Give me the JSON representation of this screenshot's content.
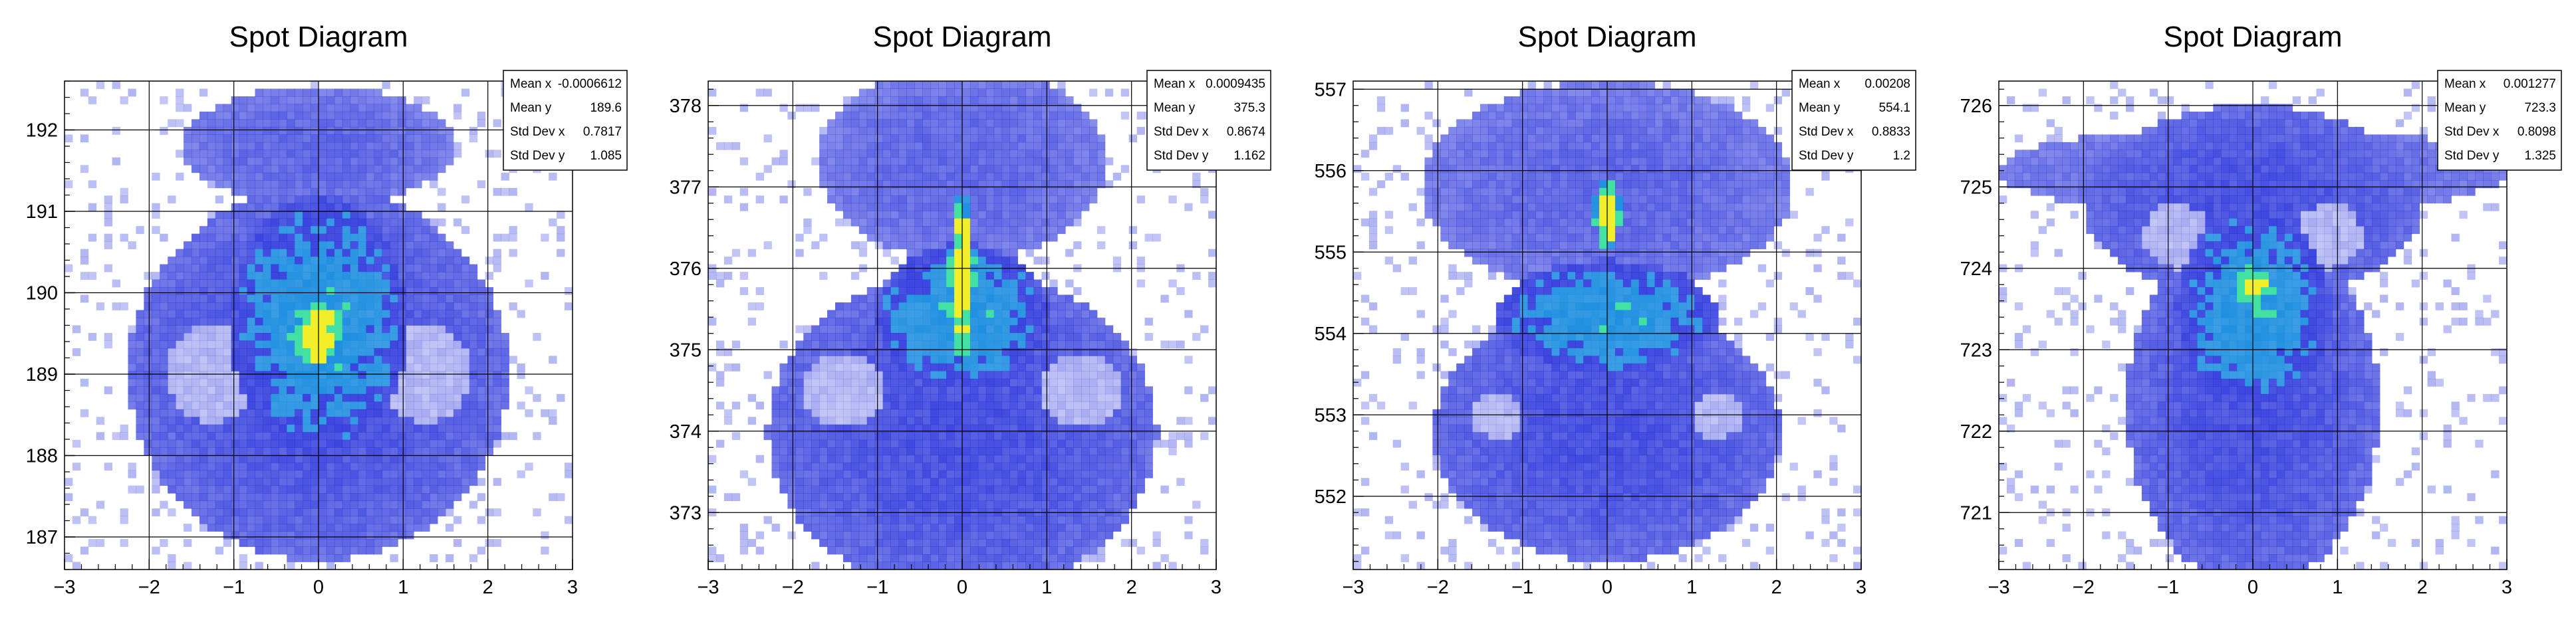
{
  "colors": {
    "background": "#ffffff",
    "frame": "#000000",
    "grid": "#000000",
    "stats_box_border": "#000000",
    "low": "#1f2ad9",
    "mid": "#1f8fe0",
    "high": "#43e0a3",
    "peak": "#f2ee2a"
  },
  "chart_data": [
    {
      "type": "heatmap",
      "title": "Spot Diagram",
      "xlim": [
        -3,
        3
      ],
      "ylim": [
        186.6,
        192.6
      ],
      "xticks": [
        -3,
        -2,
        -1,
        0,
        1,
        2,
        3
      ],
      "yticks": [
        187,
        188,
        189,
        190,
        191,
        192
      ],
      "grid": true,
      "stats_box": "top-right",
      "stats": [
        {
          "label": "Mean x",
          "value": "-0.0006612"
        },
        {
          "label": "Mean y",
          "value": "189.6"
        },
        {
          "label": "Std Dev x",
          "value": "0.7817"
        },
        {
          "label": "Std Dev y",
          "value": "1.085"
        }
      ],
      "features": [
        {
          "kind": "disk",
          "cx": 0,
          "cy": 189.0,
          "rx": 2.25,
          "ry": 2.3,
          "density": 0.55
        },
        {
          "kind": "disk",
          "cx": 0,
          "cy": 191.8,
          "rx": 1.6,
          "ry": 0.75,
          "density": 0.45
        },
        {
          "kind": "disk",
          "cx": -1.25,
          "cy": 189.0,
          "rx": 0.55,
          "ry": 0.6,
          "density": 0.08
        },
        {
          "kind": "disk",
          "cx": 1.25,
          "cy": 189.0,
          "rx": 0.55,
          "ry": 0.6,
          "density": 0.08
        },
        {
          "kind": "disk",
          "cx": 0,
          "cy": 189.6,
          "rx": 1.05,
          "ry": 1.6,
          "density": 0.72
        },
        {
          "kind": "disk",
          "cx": 0,
          "cy": 189.5,
          "rx": 0.3,
          "ry": 0.45,
          "density": 0.95
        }
      ]
    },
    {
      "type": "heatmap",
      "title": "Spot Diagram",
      "xlim": [
        -3,
        3
      ],
      "ylim": [
        372.3,
        378.3
      ],
      "xticks": [
        -3,
        -2,
        -1,
        0,
        1,
        2,
        3
      ],
      "yticks": [
        373,
        374,
        375,
        376,
        377,
        378
      ],
      "grid": true,
      "stats_box": "top-right",
      "stats": [
        {
          "label": "Mean x",
          "value": "0.0009435"
        },
        {
          "label": "Mean y",
          "value": "375.3"
        },
        {
          "label": "Std Dev x",
          "value": "0.8674"
        },
        {
          "label": "Std Dev y",
          "value": "1.162"
        }
      ],
      "features": [
        {
          "kind": "disk",
          "cx": 0,
          "cy": 374.0,
          "rx": 2.3,
          "ry": 2.0,
          "density": 0.55
        },
        {
          "kind": "disk",
          "cx": 0,
          "cy": 377.3,
          "rx": 1.7,
          "ry": 1.2,
          "density": 0.45
        },
        {
          "kind": "disk",
          "cx": -1.4,
          "cy": 374.5,
          "rx": 0.5,
          "ry": 0.45,
          "density": 0.08
        },
        {
          "kind": "disk",
          "cx": 1.4,
          "cy": 374.5,
          "rx": 0.5,
          "ry": 0.45,
          "density": 0.08
        },
        {
          "kind": "disk",
          "cx": 0,
          "cy": 375.4,
          "rx": 1.0,
          "ry": 0.9,
          "density": 0.72
        },
        {
          "kind": "disk",
          "cx": 0,
          "cy": 375.9,
          "rx": 0.15,
          "ry": 1.0,
          "density": 0.95
        }
      ]
    },
    {
      "type": "heatmap",
      "title": "Spot Diagram",
      "xlim": [
        -3,
        3
      ],
      "ylim": [
        551.1,
        557.1
      ],
      "xticks": [
        -3,
        -2,
        -1,
        0,
        1,
        2,
        3
      ],
      "yticks": [
        552,
        553,
        554,
        555,
        556,
        557
      ],
      "grid": true,
      "stats_box": "top-right",
      "stats": [
        {
          "label": "Mean x",
          "value": "0.00208"
        },
        {
          "label": "Mean y",
          "value": "554.1"
        },
        {
          "label": "Std Dev x",
          "value": "0.8833"
        },
        {
          "label": "Std Dev y",
          "value": "1.2"
        }
      ],
      "features": [
        {
          "kind": "disk",
          "cx": 0,
          "cy": 552.8,
          "rx": 2.05,
          "ry": 1.6,
          "density": 0.55
        },
        {
          "kind": "disk",
          "cx": 0,
          "cy": 555.8,
          "rx": 2.2,
          "ry": 1.3,
          "density": 0.45
        },
        {
          "kind": "disk",
          "cx": -1.3,
          "cy": 553.0,
          "rx": 0.3,
          "ry": 0.3,
          "density": 0.08
        },
        {
          "kind": "disk",
          "cx": 1.3,
          "cy": 553.0,
          "rx": 0.3,
          "ry": 0.3,
          "density": 0.08
        },
        {
          "kind": "disk",
          "cx": 0,
          "cy": 554.2,
          "rx": 1.3,
          "ry": 0.7,
          "density": 0.72
        },
        {
          "kind": "disk",
          "cx": 0,
          "cy": 555.5,
          "rx": 0.15,
          "ry": 0.45,
          "density": 0.95
        }
      ]
    },
    {
      "type": "heatmap",
      "title": "Spot Diagram",
      "xlim": [
        -3,
        3
      ],
      "ylim": [
        720.3,
        726.3
      ],
      "xticks": [
        -3,
        -2,
        -1,
        0,
        1,
        2,
        3
      ],
      "yticks": [
        721,
        722,
        723,
        724,
        725,
        726
      ],
      "grid": true,
      "stats_box": "top-right",
      "stats": [
        {
          "label": "Mean x",
          "value": "0.001277"
        },
        {
          "label": "Mean y",
          "value": "723.3"
        },
        {
          "label": "Std Dev x",
          "value": "0.8098"
        },
        {
          "label": "Std Dev y",
          "value": "1.325"
        }
      ],
      "features": [
        {
          "kind": "disk",
          "cx": 0,
          "cy": 725.2,
          "rx": 3.0,
          "ry": 0.55,
          "density": 0.45
        },
        {
          "kind": "disk",
          "cx": 0,
          "cy": 724.8,
          "rx": 2.0,
          "ry": 1.2,
          "density": 0.55
        },
        {
          "kind": "disk",
          "cx": 0,
          "cy": 722.3,
          "rx": 1.5,
          "ry": 2.2,
          "density": 0.55
        },
        {
          "kind": "disk",
          "cx": -0.9,
          "cy": 724.4,
          "rx": 0.4,
          "ry": 0.4,
          "density": 0.08
        },
        {
          "kind": "disk",
          "cx": 0.9,
          "cy": 724.4,
          "rx": 0.4,
          "ry": 0.4,
          "density": 0.08
        },
        {
          "kind": "disk",
          "cx": 0,
          "cy": 723.5,
          "rx": 0.9,
          "ry": 1.2,
          "density": 0.72
        },
        {
          "kind": "disk",
          "cx": 0,
          "cy": 723.8,
          "rx": 0.2,
          "ry": 0.25,
          "density": 0.95
        }
      ]
    }
  ]
}
